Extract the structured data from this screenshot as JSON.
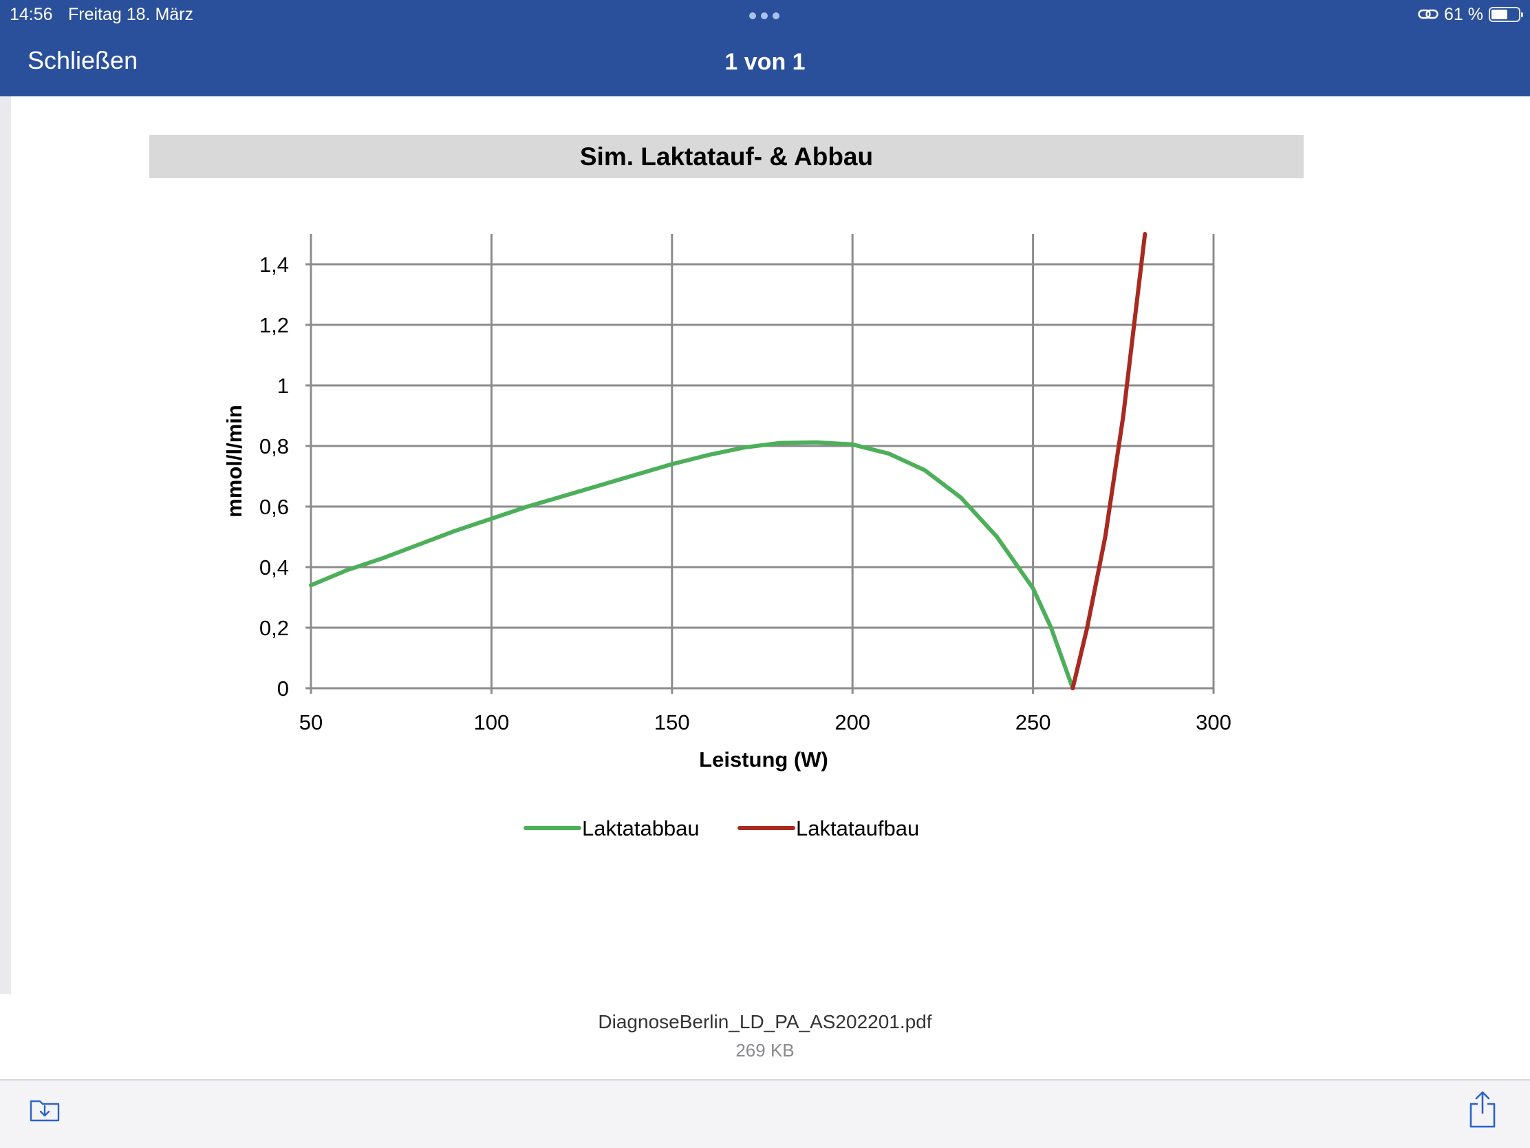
{
  "status_bar": {
    "time": "14:56",
    "date": "Freitag 18. März",
    "battery_text": "61 %",
    "battery_level": 0.61,
    "link_icon": "link-icon",
    "battery_icon": "battery-icon"
  },
  "nav": {
    "close_label": "Schließen",
    "page_indicator": "1 von 1"
  },
  "chart_data": {
    "type": "line",
    "title": "Sim. Laktatauf- & Abbau",
    "xlabel": "Leistung (W)",
    "ylabel": "mmol/l/min",
    "xlim": [
      50,
      300
    ],
    "ylim": [
      0,
      1.5
    ],
    "x_ticks": [
      50,
      100,
      150,
      200,
      250,
      300
    ],
    "x_tick_labels": [
      "50",
      "100",
      "150",
      "200",
      "250",
      "300"
    ],
    "y_ticks": [
      0,
      0.2,
      0.4,
      0.6,
      0.8,
      1,
      1.2,
      1.4
    ],
    "y_tick_labels": [
      "0",
      "0,2",
      "0,4",
      "0,6",
      "0,8",
      "1",
      "1,2",
      "1,4"
    ],
    "grid": true,
    "legend_position": "bottom",
    "series": [
      {
        "name": "Laktatabbau",
        "color": "#4daf5a",
        "x": [
          50,
          60,
          70,
          80,
          90,
          100,
          110,
          120,
          130,
          140,
          150,
          160,
          170,
          180,
          190,
          200,
          210,
          220,
          230,
          240,
          250,
          255,
          261
        ],
        "y": [
          0.34,
          0.39,
          0.43,
          0.475,
          0.52,
          0.56,
          0.6,
          0.635,
          0.67,
          0.705,
          0.74,
          0.77,
          0.795,
          0.81,
          0.812,
          0.805,
          0.775,
          0.72,
          0.63,
          0.5,
          0.33,
          0.2,
          0.0
        ]
      },
      {
        "name": "Laktataufbau",
        "color": "#a82a20",
        "x": [
          261,
          265,
          270,
          275,
          278,
          281
        ],
        "y": [
          0.0,
          0.2,
          0.5,
          0.9,
          1.2,
          1.5
        ]
      }
    ]
  },
  "file": {
    "name": "DiagnoseBerlin_LD_PA_AS202201.pdf",
    "size": "269 KB"
  },
  "toolbar": {
    "save_icon": "save-to-files-icon",
    "share_icon": "share-icon"
  }
}
